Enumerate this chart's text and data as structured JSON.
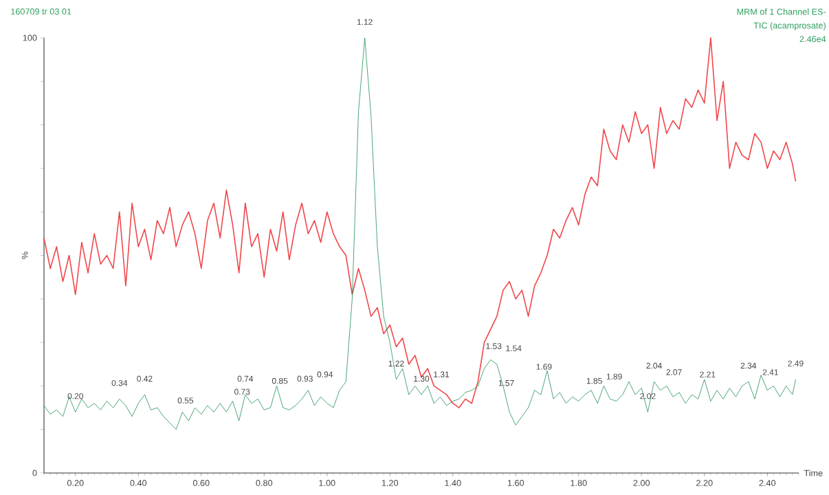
{
  "chart_data": {
    "type": "line",
    "title": "160709 tr  03 01",
    "xlabel": "Time",
    "ylabel": "%",
    "annotations": [
      "MRM of 1 Channel ES-",
      "TIC (acamprosate)",
      "2.46e4",
      {
        "text": "0.20",
        "x": 0.2,
        "y": 14
      },
      {
        "text": "0.34",
        "x": 0.34,
        "y": 17
      },
      {
        "text": "0.42",
        "x": 0.42,
        "y": 18
      },
      {
        "text": "0.55",
        "x": 0.55,
        "y": 13
      },
      {
        "text": "0.73",
        "x": 0.73,
        "y": 15
      },
      {
        "text": "0.74",
        "x": 0.74,
        "y": 18
      },
      {
        "text": "0.85",
        "x": 0.85,
        "y": 17.5
      },
      {
        "text": "0.93",
        "x": 0.93,
        "y": 18
      },
      {
        "text": "0.94",
        "x": 0.94,
        "y": 19
      },
      {
        "text": "1.12",
        "x": 1.12,
        "y": 100
      },
      {
        "text": "1.22",
        "x": 1.22,
        "y": 21.5
      },
      {
        "text": "1.30",
        "x": 1.3,
        "y": 18
      },
      {
        "text": "1.31",
        "x": 1.31,
        "y": 19
      },
      {
        "text": "1.53",
        "x": 1.53,
        "y": 25.5
      },
      {
        "text": "1.54",
        "x": 1.54,
        "y": 25
      },
      {
        "text": "1.57",
        "x": 1.57,
        "y": 17
      },
      {
        "text": "1.69",
        "x": 1.69,
        "y": 20.75
      },
      {
        "text": "1.85",
        "x": 1.85,
        "y": 17.5
      },
      {
        "text": "1.89",
        "x": 1.89,
        "y": 18.5
      },
      {
        "text": "2.02",
        "x": 2.02,
        "y": 14
      },
      {
        "text": "2.04",
        "x": 2.04,
        "y": 21
      },
      {
        "text": "2.07",
        "x": 2.07,
        "y": 19.5
      },
      {
        "text": "2.21",
        "x": 2.21,
        "y": 19
      },
      {
        "text": "2.34",
        "x": 2.34,
        "y": 21
      },
      {
        "text": "2.41",
        "x": 2.41,
        "y": 19.5
      },
      {
        "text": "2.49",
        "x": 2.49,
        "y": 21.5
      }
    ],
    "x": [
      0.1,
      0.12,
      0.14,
      0.16,
      0.18,
      0.2,
      0.22,
      0.24,
      0.26,
      0.28,
      0.3,
      0.32,
      0.34,
      0.36,
      0.38,
      0.4,
      0.42,
      0.44,
      0.46,
      0.48,
      0.5,
      0.52,
      0.54,
      0.56,
      0.58,
      0.6,
      0.62,
      0.64,
      0.66,
      0.68,
      0.7,
      0.72,
      0.74,
      0.76,
      0.78,
      0.8,
      0.82,
      0.84,
      0.86,
      0.88,
      0.9,
      0.92,
      0.94,
      0.96,
      0.98,
      1.0,
      1.02,
      1.04,
      1.06,
      1.08,
      1.1,
      1.12,
      1.14,
      1.16,
      1.18,
      1.2,
      1.22,
      1.24,
      1.26,
      1.28,
      1.3,
      1.32,
      1.34,
      1.36,
      1.38,
      1.4,
      1.42,
      1.44,
      1.46,
      1.48,
      1.5,
      1.52,
      1.54,
      1.56,
      1.58,
      1.6,
      1.62,
      1.64,
      1.66,
      1.68,
      1.7,
      1.72,
      1.74,
      1.76,
      1.78,
      1.8,
      1.82,
      1.84,
      1.86,
      1.88,
      1.9,
      1.92,
      1.94,
      1.96,
      1.98,
      2.0,
      2.02,
      2.04,
      2.06,
      2.08,
      2.1,
      2.12,
      2.14,
      2.16,
      2.18,
      2.2,
      2.22,
      2.24,
      2.26,
      2.28,
      2.3,
      2.32,
      2.34,
      2.36,
      2.38,
      2.4,
      2.42,
      2.44,
      2.46,
      2.48,
      2.49
    ],
    "series": [
      {
        "color": "#f0464b",
        "values": [
          54,
          47,
          52,
          44,
          50,
          41,
          53,
          46,
          55,
          48,
          50,
          47,
          60,
          43,
          62,
          52,
          56,
          49,
          58,
          55,
          61,
          52,
          57,
          60,
          55,
          47,
          58,
          62,
          54,
          65,
          57,
          46,
          62,
          52,
          55,
          45,
          56,
          51,
          60,
          49,
          57,
          62,
          55,
          58,
          53,
          60,
          55,
          52,
          50,
          41,
          47,
          42,
          36,
          38,
          32,
          34,
          29,
          31,
          25,
          27,
          22,
          24,
          20,
          19,
          18,
          16,
          15,
          17,
          16,
          21,
          30,
          33,
          36,
          42,
          44,
          40,
          42,
          36,
          43,
          46,
          50,
          56,
          54,
          58,
          61,
          57,
          64,
          68,
          66,
          79,
          74,
          72,
          80,
          76,
          83,
          78,
          80,
          70,
          84,
          78,
          81,
          79,
          86,
          84,
          88,
          85,
          100,
          81,
          90,
          70,
          76,
          73,
          72,
          78,
          76,
          70,
          74,
          72,
          76,
          71,
          67
        ]
      },
      {
        "color": "#1f8f55",
        "values": [
          15.5,
          13.5,
          14.5,
          13,
          17.5,
          14,
          17,
          15,
          16,
          14.5,
          16.5,
          15,
          17,
          15.5,
          13,
          16,
          18,
          14.5,
          15,
          13,
          11.5,
          10,
          14,
          12,
          15,
          13.5,
          15.5,
          14,
          16,
          14,
          16.5,
          12,
          18,
          16,
          17,
          14.5,
          15,
          20,
          15,
          14.5,
          15.5,
          17,
          19,
          15.5,
          17.5,
          16,
          15,
          19,
          21,
          40,
          83,
          100,
          82,
          52,
          36,
          30,
          21.5,
          24,
          18,
          20,
          18,
          20,
          16,
          17.5,
          15.5,
          16.5,
          17,
          18.5,
          19,
          20,
          24,
          26,
          25,
          20,
          14,
          11,
          13,
          15,
          19,
          18,
          23.5,
          17,
          18.5,
          16,
          17.5,
          16.5,
          18,
          19,
          16,
          20,
          17,
          16.5,
          18,
          21,
          18,
          19.5,
          14,
          21,
          19,
          20,
          17.5,
          18.5,
          16,
          18,
          17,
          21.5,
          16.5,
          19,
          17,
          19.5,
          17.5,
          20,
          21,
          17,
          22.5,
          19,
          20,
          17.5,
          20,
          18,
          21.5
        ]
      }
    ],
    "xlim": [
      0.1,
      2.5
    ],
    "ylim": [
      0,
      100
    ],
    "xticks": [
      {
        "value": 0.2,
        "label": "0.20"
      },
      {
        "value": 0.4,
        "label": "0.40"
      },
      {
        "value": 0.6,
        "label": "0.60"
      },
      {
        "value": 0.8,
        "label": "0.80"
      },
      {
        "value": 1.0,
        "label": "1.00"
      },
      {
        "value": 1.2,
        "label": "1.20"
      },
      {
        "value": 1.4,
        "label": "1.40"
      },
      {
        "value": 1.6,
        "label": "1.60"
      },
      {
        "value": 1.8,
        "label": "1.80"
      },
      {
        "value": 2.0,
        "label": "2.00"
      },
      {
        "value": 2.2,
        "label": "2.20"
      },
      {
        "value": 2.4,
        "label": "2.40"
      }
    ],
    "yticks": [
      {
        "value": 0,
        "label": "0"
      },
      {
        "value": 10,
        "label": null
      },
      {
        "value": 20,
        "label": null
      },
      {
        "value": 30,
        "label": null
      },
      {
        "value": 40,
        "label": null
      },
      {
        "value": 50,
        "label": null
      },
      {
        "value": 60,
        "label": null
      },
      {
        "value": 70,
        "label": null
      },
      {
        "value": 80,
        "label": null
      },
      {
        "value": 90,
        "label": null
      },
      {
        "value": 100,
        "label": "100"
      }
    ]
  }
}
